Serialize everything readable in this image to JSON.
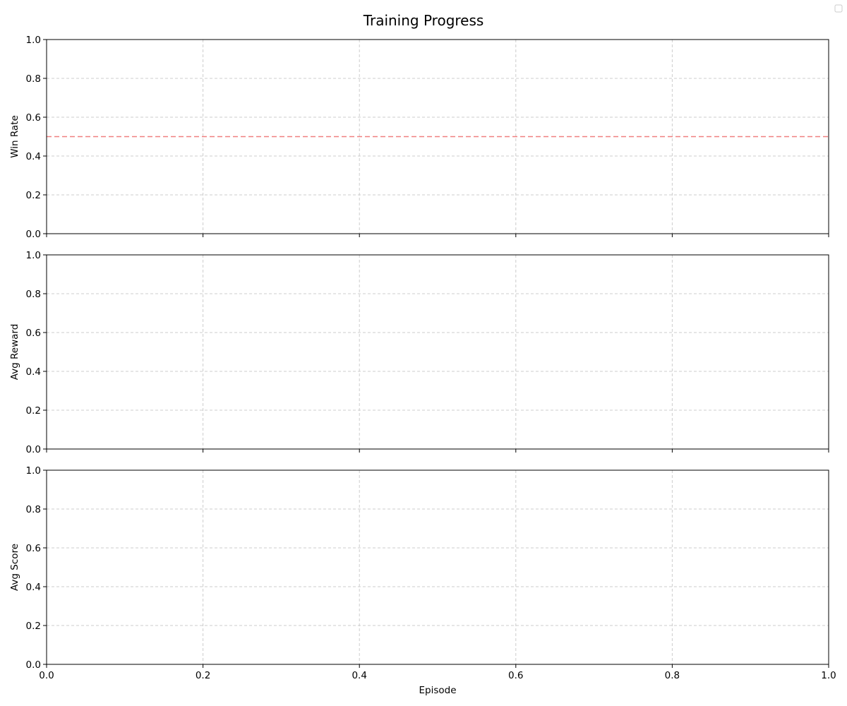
{
  "chart_data": {
    "type": "line",
    "title": "Training Progress",
    "legend": {
      "placement": "top-right",
      "entries": []
    },
    "shared_x": true,
    "xlabel": "Episode",
    "xlim": [
      0.0,
      1.0
    ],
    "x_ticks": [
      "0.0",
      "0.2",
      "0.4",
      "0.6",
      "0.8",
      "1.0"
    ],
    "grid": true,
    "colors": {
      "grid": "#cccccc",
      "reference_line": "#f08080",
      "axes": "#000000"
    },
    "subplots": [
      {
        "ylabel": "Win Rate",
        "ylim": [
          0.0,
          1.0
        ],
        "y_ticks": [
          "0.0",
          "0.2",
          "0.4",
          "0.6",
          "0.8",
          "1.0"
        ],
        "series": [],
        "reference_lines": [
          {
            "axis": "y",
            "value": 0.5,
            "style": "dashed"
          }
        ]
      },
      {
        "ylabel": "Avg Reward",
        "ylim": [
          0.0,
          1.0
        ],
        "y_ticks": [
          "0.0",
          "0.2",
          "0.4",
          "0.6",
          "0.8",
          "1.0"
        ],
        "series": [],
        "reference_lines": []
      },
      {
        "ylabel": "Avg Score",
        "ylim": [
          0.0,
          1.0
        ],
        "y_ticks": [
          "0.0",
          "0.2",
          "0.4",
          "0.6",
          "0.8",
          "1.0"
        ],
        "series": [],
        "reference_lines": []
      }
    ]
  }
}
